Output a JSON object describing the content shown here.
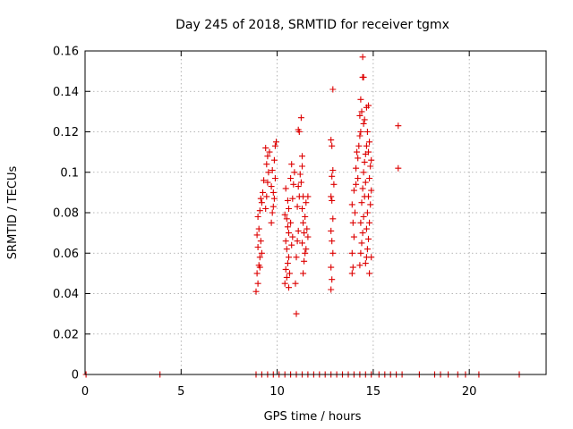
{
  "chart_data": {
    "type": "scatter",
    "title": "Day 245 of 2018, SRMTID for receiver tgmx",
    "xlabel": "GPS time / hours",
    "ylabel": "SRMTID / TECUs",
    "xlim": [
      0,
      24
    ],
    "ylim": [
      0,
      0.16
    ],
    "xticks": [
      0,
      5,
      10,
      15,
      20
    ],
    "yticks": [
      0,
      0.02,
      0.04,
      0.06,
      0.08,
      0.1,
      0.12,
      0.14,
      0.16
    ],
    "ytick_labels": [
      "0",
      "0.02",
      "0.04",
      "0.06",
      "0.08",
      "0.1",
      "0.12",
      "0.14",
      "0.16"
    ],
    "grid": true,
    "marker": "+",
    "color": "#dd0000",
    "series": [
      {
        "name": "SRMTID",
        "points": [
          [
            0.05,
            0
          ],
          [
            3.9,
            0
          ],
          [
            8.9,
            0
          ],
          [
            9.2,
            0
          ],
          [
            9.5,
            0
          ],
          [
            9.8,
            0
          ],
          [
            10.1,
            0
          ],
          [
            10.4,
            0
          ],
          [
            10.7,
            0
          ],
          [
            11.0,
            0
          ],
          [
            11.3,
            0
          ],
          [
            11.6,
            0
          ],
          [
            11.9,
            0
          ],
          [
            12.2,
            0
          ],
          [
            12.5,
            0
          ],
          [
            12.8,
            0
          ],
          [
            13.1,
            0
          ],
          [
            13.4,
            0
          ],
          [
            13.7,
            0
          ],
          [
            14.0,
            0
          ],
          [
            14.3,
            0
          ],
          [
            14.6,
            0
          ],
          [
            14.9,
            0
          ],
          [
            15.3,
            0
          ],
          [
            15.6,
            0
          ],
          [
            15.9,
            0
          ],
          [
            16.2,
            0
          ],
          [
            16.5,
            0
          ],
          [
            17.4,
            0
          ],
          [
            18.2,
            0
          ],
          [
            18.5,
            0
          ],
          [
            18.9,
            0
          ],
          [
            19.4,
            0
          ],
          [
            19.8,
            0
          ],
          [
            20.5,
            0
          ],
          [
            22.6,
            0
          ],
          [
            8.9,
            0.041
          ],
          [
            9.0,
            0.045
          ],
          [
            8.95,
            0.05
          ],
          [
            9.05,
            0.054
          ],
          [
            9.1,
            0.058
          ],
          [
            9.0,
            0.063
          ],
          [
            9.15,
            0.066
          ],
          [
            9.05,
            0.072
          ],
          [
            9.0,
            0.078
          ],
          [
            9.1,
            0.081
          ],
          [
            9.2,
            0.085
          ],
          [
            9.15,
            0.087
          ],
          [
            9.25,
            0.09
          ],
          [
            9.3,
            0.096
          ],
          [
            9.1,
            0.053
          ],
          [
            9.2,
            0.06
          ],
          [
            8.95,
            0.069
          ],
          [
            9.4,
            0.082
          ],
          [
            9.45,
            0.088
          ],
          [
            9.5,
            0.095
          ],
          [
            9.55,
            0.1
          ],
          [
            9.45,
            0.104
          ],
          [
            9.5,
            0.108
          ],
          [
            9.6,
            0.11
          ],
          [
            9.4,
            0.112
          ],
          [
            9.7,
            0.075
          ],
          [
            9.75,
            0.08
          ],
          [
            9.8,
            0.083
          ],
          [
            9.85,
            0.087
          ],
          [
            9.7,
            0.093
          ],
          [
            9.9,
            0.097
          ],
          [
            9.75,
            0.101
          ],
          [
            9.85,
            0.106
          ],
          [
            9.9,
            0.113
          ],
          [
            9.95,
            0.115
          ],
          [
            9.8,
            0.09
          ],
          [
            10.4,
            0.045
          ],
          [
            10.5,
            0.048
          ],
          [
            10.45,
            0.052
          ],
          [
            10.55,
            0.055
          ],
          [
            10.6,
            0.058
          ],
          [
            10.5,
            0.062
          ],
          [
            10.45,
            0.066
          ],
          [
            10.6,
            0.07
          ],
          [
            10.55,
            0.073
          ],
          [
            10.5,
            0.077
          ],
          [
            10.4,
            0.079
          ],
          [
            10.6,
            0.082
          ],
          [
            10.55,
            0.086
          ],
          [
            10.45,
            0.092
          ],
          [
            10.7,
            0.097
          ],
          [
            10.65,
            0.05
          ],
          [
            10.75,
            0.064
          ],
          [
            10.8,
            0.068
          ],
          [
            10.7,
            0.075
          ],
          [
            10.6,
            0.043
          ],
          [
            10.8,
            0.087
          ],
          [
            10.85,
            0.094
          ],
          [
            10.9,
            0.1
          ],
          [
            10.75,
            0.104
          ],
          [
            11.0,
            0.03
          ],
          [
            10.95,
            0.045
          ],
          [
            11.0,
            0.058
          ],
          [
            11.05,
            0.066
          ],
          [
            11.1,
            0.071
          ],
          [
            11.05,
            0.083
          ],
          [
            11.15,
            0.088
          ],
          [
            11.1,
            0.093
          ],
          [
            11.2,
            0.099
          ],
          [
            11.15,
            0.12
          ],
          [
            11.1,
            0.121
          ],
          [
            11.25,
            0.127
          ],
          [
            11.3,
            0.108
          ],
          [
            11.3,
            0.103
          ],
          [
            11.25,
            0.095
          ],
          [
            11.35,
            0.088
          ],
          [
            11.3,
            0.082
          ],
          [
            11.35,
            0.075
          ],
          [
            11.4,
            0.07
          ],
          [
            11.3,
            0.065
          ],
          [
            11.45,
            0.06
          ],
          [
            11.4,
            0.056
          ],
          [
            11.35,
            0.05
          ],
          [
            11.45,
            0.078
          ],
          [
            11.5,
            0.085
          ],
          [
            11.55,
            0.072
          ],
          [
            11.6,
            0.068
          ],
          [
            11.5,
            0.062
          ],
          [
            11.6,
            0.088
          ],
          [
            12.8,
            0.042
          ],
          [
            12.85,
            0.047
          ],
          [
            12.8,
            0.053
          ],
          [
            12.9,
            0.06
          ],
          [
            12.85,
            0.066
          ],
          [
            12.8,
            0.071
          ],
          [
            12.9,
            0.077
          ],
          [
            12.85,
            0.086
          ],
          [
            12.8,
            0.088
          ],
          [
            12.95,
            0.094
          ],
          [
            12.85,
            0.098
          ],
          [
            12.9,
            0.101
          ],
          [
            12.85,
            0.113
          ],
          [
            12.8,
            0.116
          ],
          [
            12.9,
            0.141
          ],
          [
            13.9,
            0.05
          ],
          [
            13.95,
            0.053
          ],
          [
            13.9,
            0.06
          ],
          [
            14.0,
            0.068
          ],
          [
            13.95,
            0.075
          ],
          [
            14.05,
            0.08
          ],
          [
            13.9,
            0.084
          ],
          [
            14.0,
            0.091
          ],
          [
            14.1,
            0.094
          ],
          [
            14.2,
            0.097
          ],
          [
            14.1,
            0.102
          ],
          [
            14.2,
            0.107
          ],
          [
            14.15,
            0.11
          ],
          [
            14.25,
            0.113
          ],
          [
            14.3,
            0.118
          ],
          [
            14.35,
            0.12
          ],
          [
            14.3,
            0.128
          ],
          [
            14.4,
            0.13
          ],
          [
            14.35,
            0.136
          ],
          [
            14.45,
            0.147
          ],
          [
            14.5,
            0.147
          ],
          [
            14.45,
            0.157
          ],
          [
            14.3,
            0.054
          ],
          [
            14.35,
            0.06
          ],
          [
            14.4,
            0.065
          ],
          [
            14.45,
            0.07
          ],
          [
            14.35,
            0.075
          ],
          [
            14.5,
            0.078
          ],
          [
            14.4,
            0.085
          ],
          [
            14.55,
            0.088
          ],
          [
            14.45,
            0.092
          ],
          [
            14.6,
            0.095
          ],
          [
            14.5,
            0.1
          ],
          [
            14.55,
            0.105
          ],
          [
            14.6,
            0.109
          ],
          [
            14.65,
            0.113
          ],
          [
            14.5,
            0.124
          ],
          [
            14.55,
            0.126
          ],
          [
            14.6,
            0.055
          ],
          [
            14.65,
            0.058
          ],
          [
            14.7,
            0.062
          ],
          [
            14.75,
            0.067
          ],
          [
            14.65,
            0.072
          ],
          [
            14.8,
            0.075
          ],
          [
            14.7,
            0.08
          ],
          [
            14.85,
            0.084
          ],
          [
            14.75,
            0.088
          ],
          [
            14.9,
            0.091
          ],
          [
            14.8,
            0.097
          ],
          [
            14.85,
            0.103
          ],
          [
            14.9,
            0.106
          ],
          [
            14.75,
            0.11
          ],
          [
            14.8,
            0.115
          ],
          [
            14.7,
            0.12
          ],
          [
            14.65,
            0.132
          ],
          [
            14.75,
            0.133
          ],
          [
            14.8,
            0.05
          ],
          [
            14.9,
            0.058
          ],
          [
            16.3,
            0.102
          ],
          [
            16.3,
            0.123
          ]
        ]
      }
    ]
  }
}
